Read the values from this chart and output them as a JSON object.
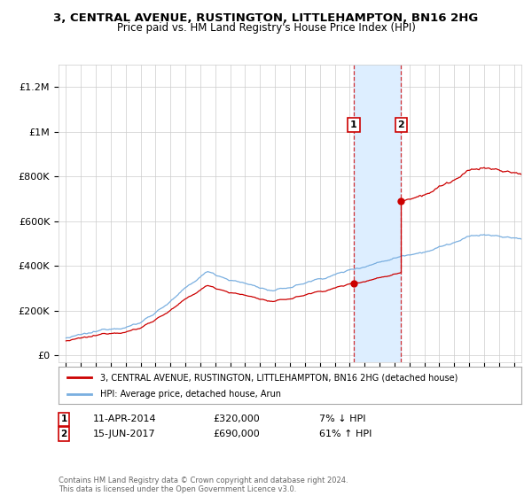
{
  "title": "3, CENTRAL AVENUE, RUSTINGTON, LITTLEHAMPTON, BN16 2HG",
  "subtitle": "Price paid vs. HM Land Registry's House Price Index (HPI)",
  "ylabel_ticks": [
    0,
    200000,
    400000,
    600000,
    800000,
    1000000,
    1200000
  ],
  "ylabel_labels": [
    "£0",
    "£200K",
    "£400K",
    "£600K",
    "£800K",
    "£1M",
    "£1.2M"
  ],
  "xlim": [
    1994.5,
    2025.5
  ],
  "ylim": [
    -30000,
    1300000
  ],
  "sale1_year": 2014,
  "sale1_month": 4,
  "sale1_date": 2014.27,
  "sale1_price": 320000,
  "sale2_year": 2017,
  "sale2_month": 6,
  "sale2_date": 2017.45,
  "sale2_price": 690000,
  "legend_line1": "3, CENTRAL AVENUE, RUSTINGTON, LITTLEHAMPTON, BN16 2HG (detached house)",
  "legend_line2": "HPI: Average price, detached house, Arun",
  "sale1_info_col1": "11-APR-2014",
  "sale1_info_col2": "£320,000",
  "sale1_info_col3": "7% ↓ HPI",
  "sale2_info_col1": "15-JUN-2017",
  "sale2_info_col2": "£690,000",
  "sale2_info_col3": "61% ↑ HPI",
  "footer": "Contains HM Land Registry data © Crown copyright and database right 2024.\nThis data is licensed under the Open Government Licence v3.0.",
  "line_color_red": "#cc0000",
  "line_color_blue": "#7aafe0",
  "shade_color": "#ddeeff",
  "background_color": "#ffffff",
  "grid_color": "#cccccc",
  "marker_color_red": "#cc0000"
}
